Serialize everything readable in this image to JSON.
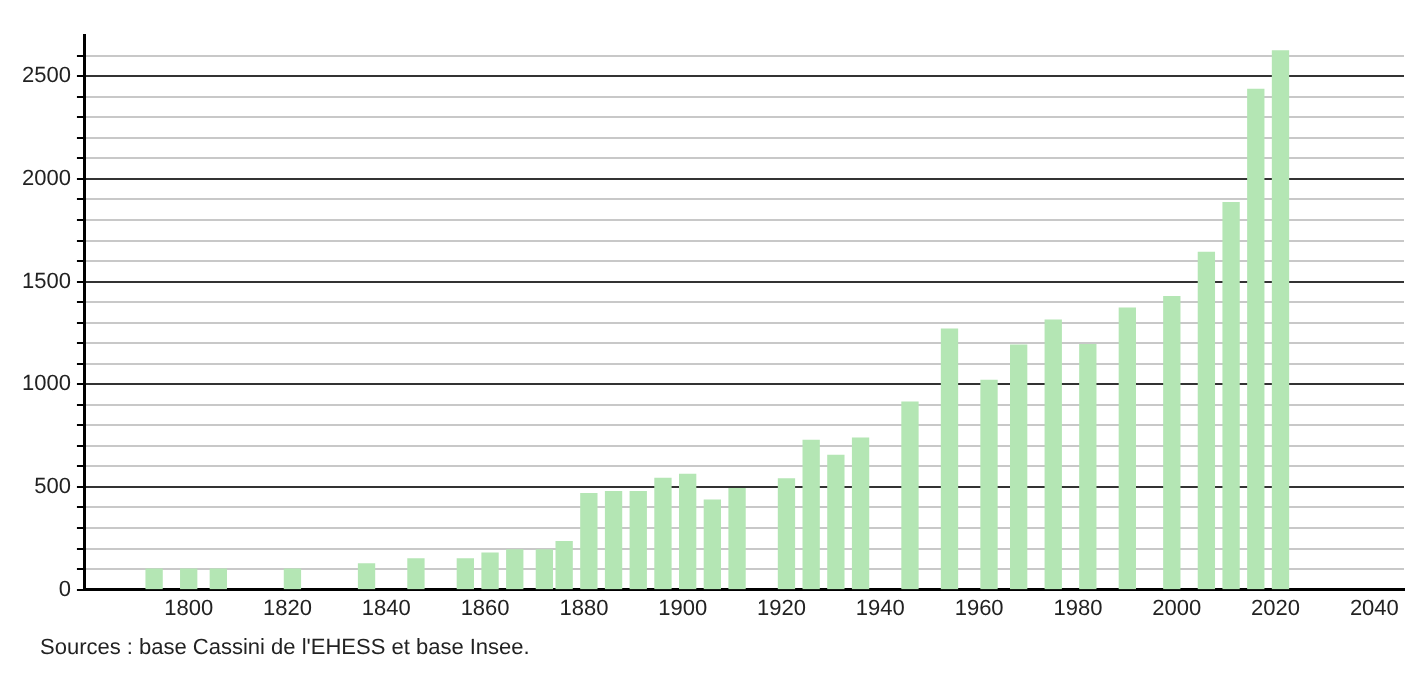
{
  "chart_data": {
    "type": "bar",
    "x": [
      1793,
      1800,
      1806,
      1821,
      1836,
      1846,
      1856,
      1861,
      1866,
      1872,
      1876,
      1881,
      1886,
      1891,
      1896,
      1901,
      1906,
      1911,
      1921,
      1926,
      1931,
      1936,
      1946,
      1954,
      1962,
      1968,
      1975,
      1982,
      1990,
      1999,
      2006,
      2011,
      2016,
      2021
    ],
    "values": [
      100,
      100,
      100,
      100,
      125,
      150,
      150,
      178,
      193,
      193,
      234,
      467,
      477,
      477,
      542,
      561,
      436,
      492,
      539,
      726,
      654,
      738,
      913,
      1268,
      1019,
      1190,
      1312,
      1193,
      1371,
      1427,
      1642,
      1885,
      2436,
      2623
    ],
    "color": "#b4e6b4",
    "xlim": [
      1779,
      2046
    ],
    "xticks": [
      1800,
      1820,
      1840,
      1860,
      1880,
      1900,
      1920,
      1940,
      1960,
      1980,
      2000,
      2020,
      2040
    ],
    "ylim": [
      0,
      2700
    ],
    "yticks": [
      0,
      {
        "value": 100,
        "label": null
      },
      {
        "value": 200,
        "label": null
      },
      {
        "value": 300,
        "label": null
      },
      {
        "value": 400,
        "label": null
      },
      500,
      {
        "value": 600,
        "label": null
      },
      {
        "value": 700,
        "label": null
      },
      {
        "value": 800,
        "label": null
      },
      {
        "value": 900,
        "label": null
      },
      1000,
      {
        "value": 1100,
        "label": null
      },
      {
        "value": 1200,
        "label": null
      },
      {
        "value": 1300,
        "label": null
      },
      {
        "value": 1400,
        "label": null
      },
      1500,
      {
        "value": 1600,
        "label": null
      },
      {
        "value": 1700,
        "label": null
      },
      {
        "value": 1800,
        "label": null
      },
      {
        "value": 1900,
        "label": null
      },
      2000,
      {
        "value": 2100,
        "label": null
      },
      {
        "value": 2200,
        "label": null
      },
      {
        "value": 2300,
        "label": null
      },
      {
        "value": 2400,
        "label": null
      },
      2500,
      {
        "value": 2600,
        "label": null
      }
    ],
    "grid": "y",
    "annotations": [
      "Sources : base Cassini de l'EHESS et base Insee."
    ]
  }
}
